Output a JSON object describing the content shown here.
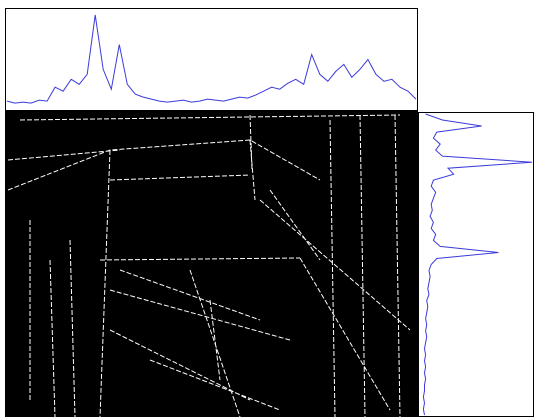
{
  "chart_data": [
    {
      "type": "line",
      "orientation": "vertical",
      "color": "#3b3bdc",
      "values": [
        8,
        6,
        7,
        6,
        9,
        8,
        22,
        18,
        30,
        25,
        35,
        95,
        40,
        20,
        65,
        25,
        15,
        12,
        10,
        8,
        7,
        8,
        9,
        7,
        8,
        10,
        9,
        8,
        10,
        12,
        11,
        14,
        18,
        22,
        20,
        26,
        30,
        25,
        55,
        35,
        28,
        38,
        45,
        32,
        40,
        50,
        35,
        28,
        30,
        22,
        18,
        10
      ],
      "ylim": [
        0,
        100
      ]
    },
    {
      "type": "line",
      "orientation": "horizontal",
      "color": "#3b3bdc",
      "values": [
        5,
        20,
        55,
        15,
        12,
        18,
        14,
        20,
        100,
        25,
        30,
        12,
        10,
        14,
        12,
        10,
        11,
        9,
        12,
        10,
        14,
        12,
        18,
        70,
        15,
        10,
        8,
        9,
        8,
        7,
        8,
        6,
        7,
        6,
        5,
        6,
        5,
        6,
        5,
        4,
        5,
        4,
        5,
        4,
        5,
        4,
        4,
        3,
        4,
        3,
        4
      ],
      "xlim": [
        0,
        100
      ]
    }
  ]
}
